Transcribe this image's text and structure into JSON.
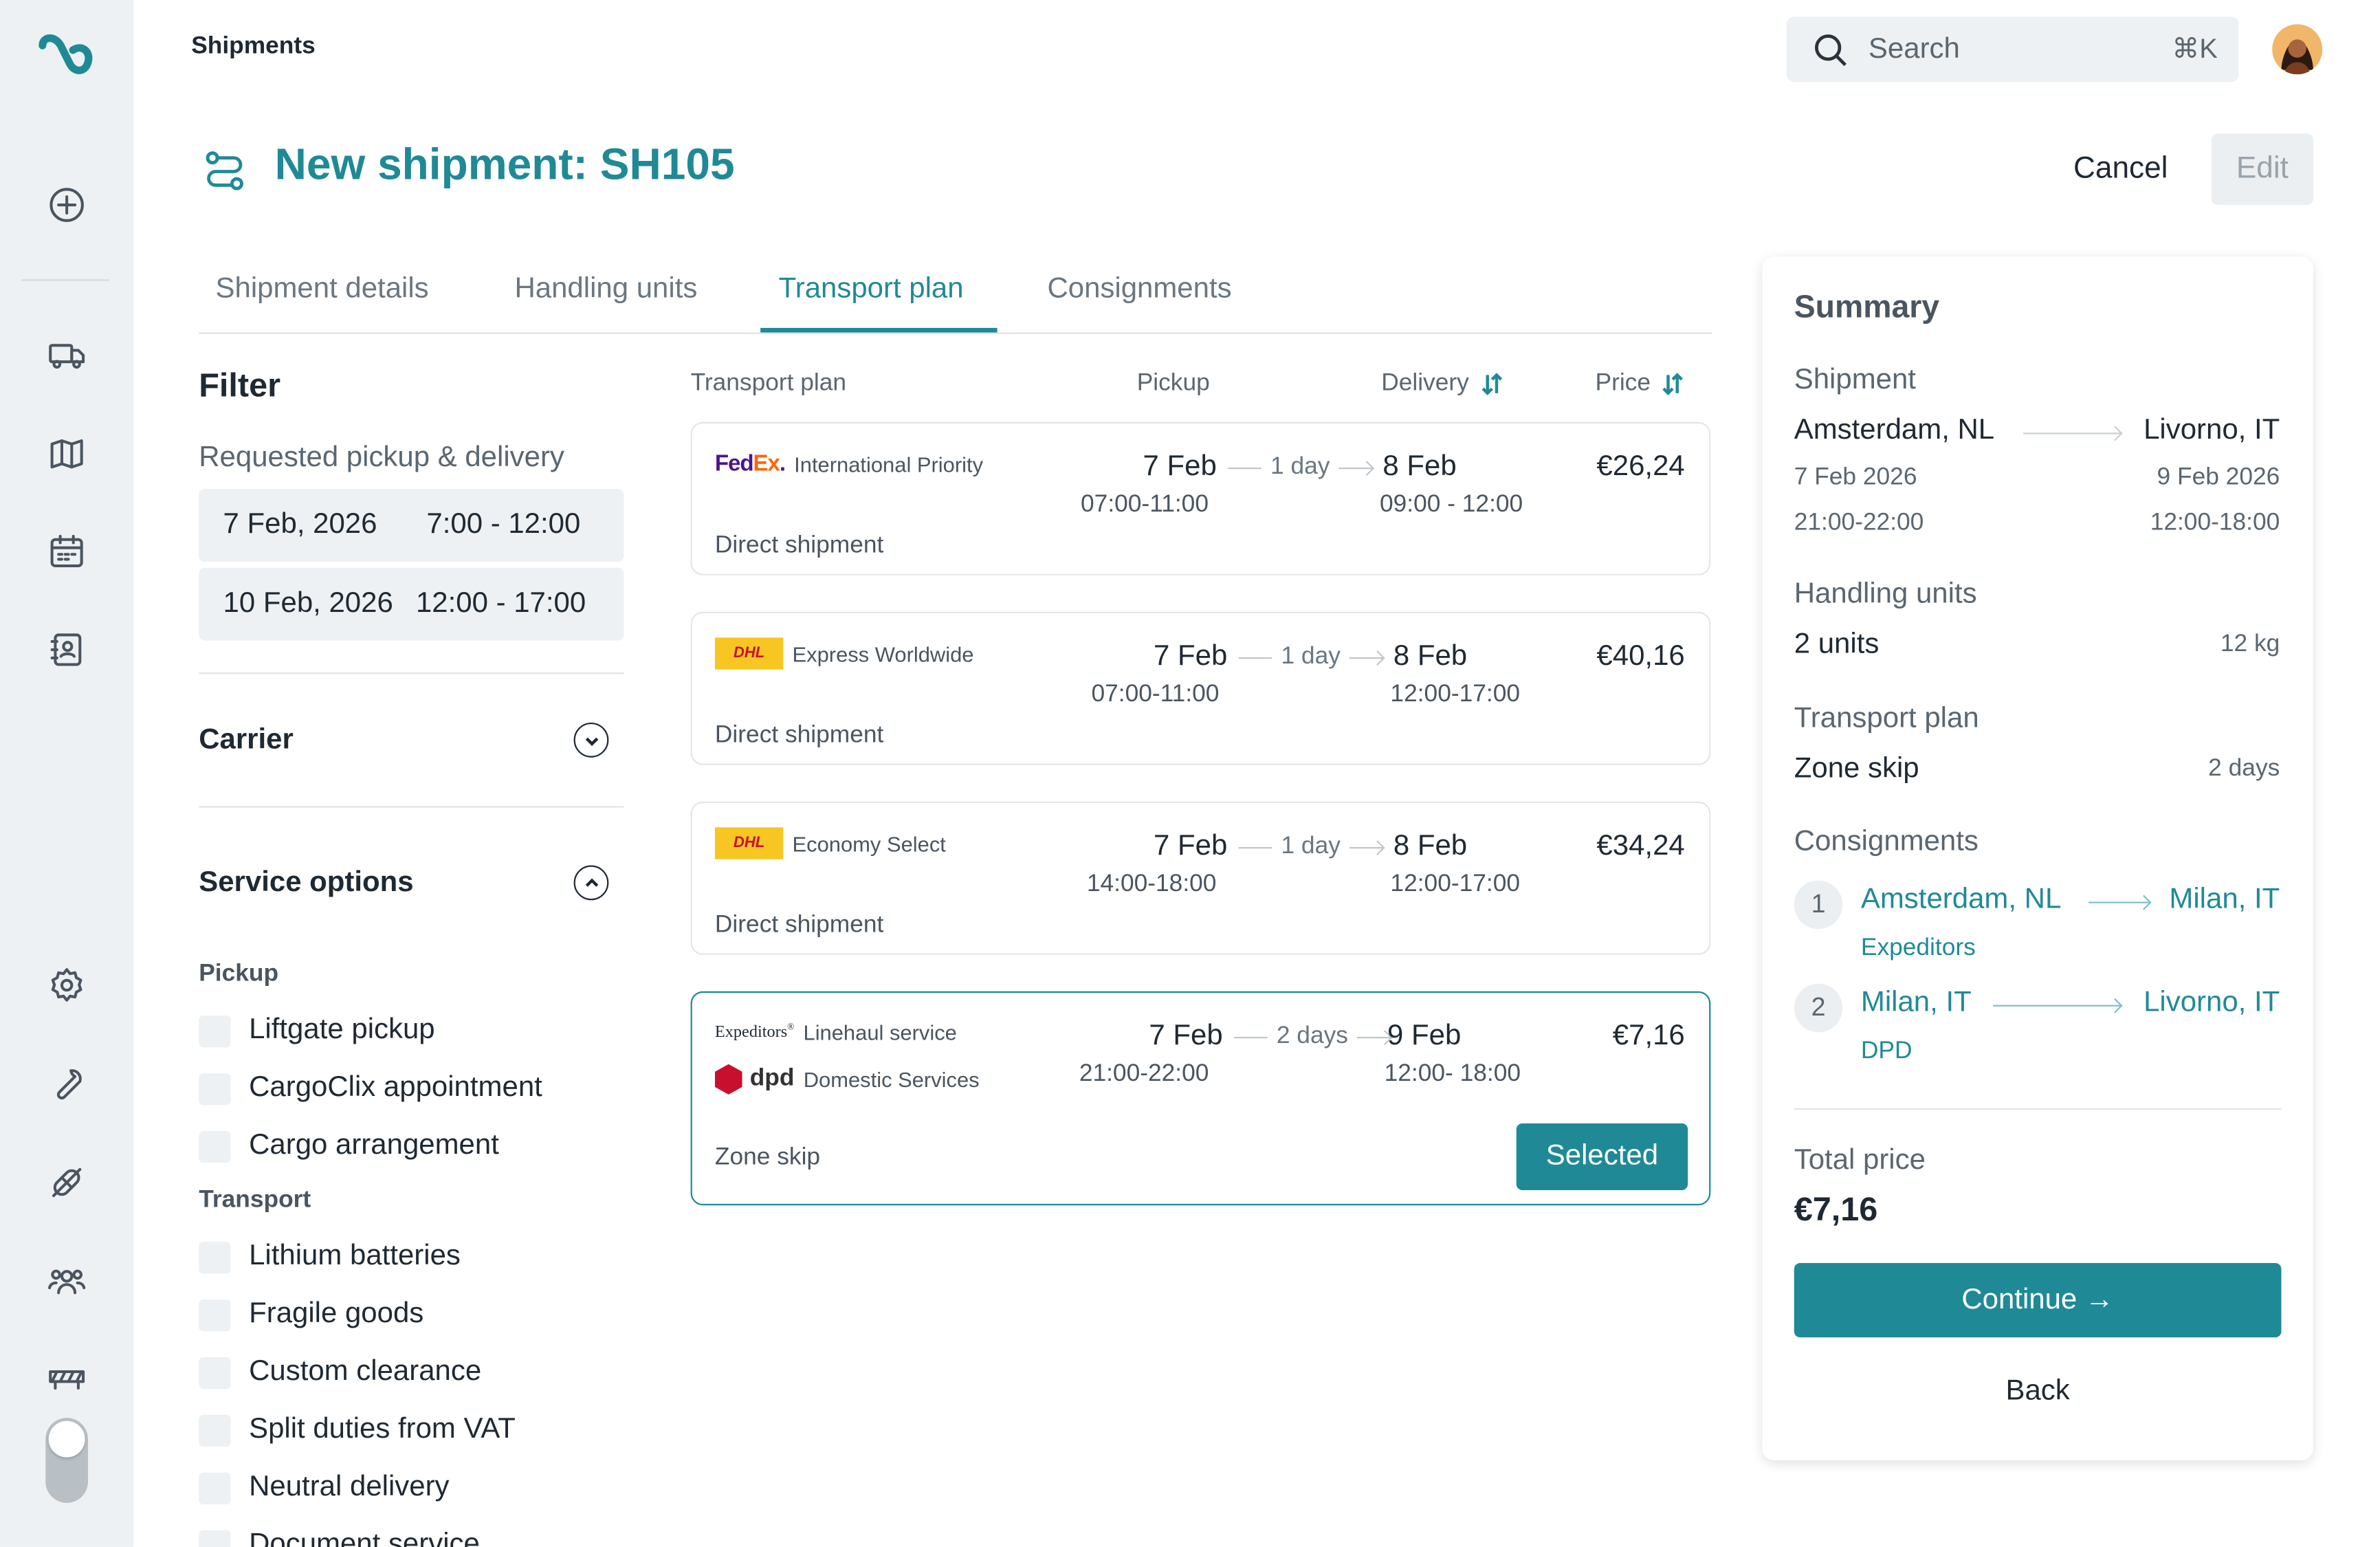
{
  "header": {
    "breadcrumb": "Shipments",
    "search_placeholder": "Search",
    "search_shortcut": "⌘K",
    "page_title": "New shipment: SH105",
    "cancel_label": "Cancel",
    "edit_label": "Edit"
  },
  "tabs": [
    {
      "label": "Shipment details",
      "active": false
    },
    {
      "label": "Handling units",
      "active": false
    },
    {
      "label": "Transport plan",
      "active": true
    },
    {
      "label": "Consignments",
      "active": false
    }
  ],
  "filter": {
    "title": "Filter",
    "requested_label": "Requested pickup & delivery",
    "pickup_date": "7 Feb, 2026",
    "pickup_time": "7:00 - 12:00",
    "delivery_date": "10 Feb, 2026",
    "delivery_time": "12:00 - 17:00",
    "carrier_label": "Carrier",
    "service_options_label": "Service options",
    "pickup_group": "Pickup",
    "pickup_options": [
      "Liftgate pickup",
      "CargoClix appointment",
      "Cargo arrangement"
    ],
    "transport_group": "Transport",
    "transport_options": [
      "Lithium batteries",
      "Fragile goods",
      "Custom clearance",
      "Split duties from VAT",
      "Neutral delivery",
      "Document service"
    ]
  },
  "plan_headers": {
    "transport_plan": "Transport plan",
    "pickup": "Pickup",
    "delivery": "Delivery",
    "price": "Price"
  },
  "plans": [
    {
      "carrier": "FedEx",
      "service": "International Priority",
      "pickup_date": "7 Feb",
      "pickup_time": "07:00-11:00",
      "duration": "1 day",
      "delivery_date": "8 Feb",
      "delivery_time": "09:00 - 12:00",
      "price": "€26,24",
      "kind": "Direct shipment"
    },
    {
      "carrier": "DHL",
      "service": "Express Worldwide",
      "pickup_date": "7 Feb",
      "pickup_time": "07:00-11:00",
      "duration": "1 day",
      "delivery_date": "8 Feb",
      "delivery_time": "12:00-17:00",
      "price": "€40,16",
      "kind": "Direct shipment"
    },
    {
      "carrier": "DHL",
      "service": "Economy Select",
      "pickup_date": "7 Feb",
      "pickup_time": "14:00-18:00",
      "duration": "1 day",
      "delivery_date": "8 Feb",
      "delivery_time": "12:00-17:00",
      "price": "€34,24",
      "kind": "Direct shipment"
    },
    {
      "carrier": "Expeditors",
      "service": "Linehaul service",
      "carrier2": "dpd",
      "service2": "Domestic Services",
      "pickup_date": "7 Feb",
      "pickup_time": "21:00-22:00",
      "duration": "2 days",
      "delivery_date": "9 Feb",
      "delivery_time": "12:00- 18:00",
      "price": "€7,16",
      "kind": "Zone skip",
      "selected_label": "Selected"
    }
  ],
  "summary": {
    "title": "Summary",
    "shipment_label": "Shipment",
    "origin": "Amsterdam, NL",
    "destination": "Livorno, IT",
    "origin_date": "7 Feb 2026",
    "destination_date": "9 Feb 2026",
    "origin_time": "21:00-22:00",
    "destination_time": "12:00-18:00",
    "handling_label": "Handling units",
    "units": "2 units",
    "weight": "12 kg",
    "transport_label": "Transport plan",
    "plan_name": "Zone skip",
    "plan_duration": "2 days",
    "consignments_label": "Consignments",
    "consignments": [
      {
        "num": "1",
        "from": "Amsterdam, NL",
        "to": "Milan, IT",
        "carrier": "Expeditors"
      },
      {
        "num": "2",
        "from": "Milan, IT",
        "to": "Livorno, IT",
        "carrier": "DPD"
      }
    ],
    "total_label": "Total price",
    "total": "€7,16",
    "continue_label": "Continue →",
    "back_label": "Back"
  },
  "colors": {
    "accent": "#1f8a96",
    "rail": "#eef1f3"
  }
}
